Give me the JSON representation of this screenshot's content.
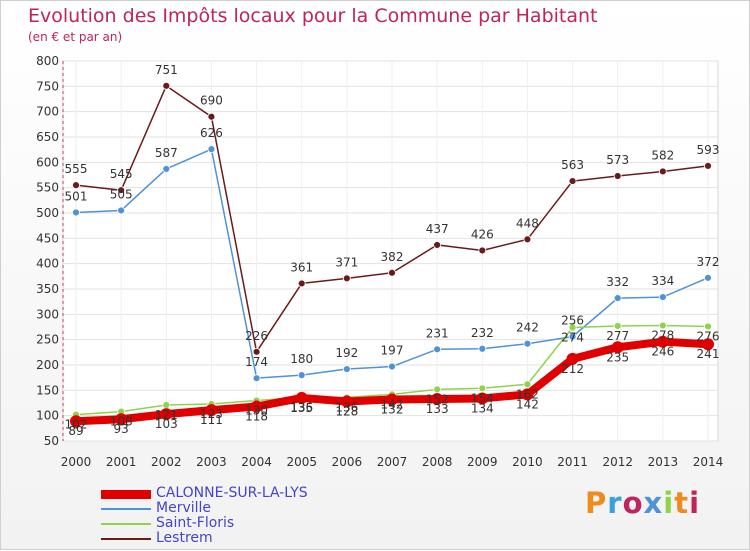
{
  "chart_data": {
    "type": "line",
    "title": "Evolution des Impôts locaux pour la Commune par Habitant",
    "subtitle": "(en € et par an)",
    "x": [
      "2000",
      "2001",
      "2002",
      "2003",
      "2004",
      "2005",
      "2006",
      "2007",
      "2008",
      "2009",
      "2010",
      "2011",
      "2012",
      "2013",
      "2014"
    ],
    "ylim": [
      50,
      800
    ],
    "yticks": [
      50,
      100,
      150,
      200,
      250,
      300,
      350,
      400,
      450,
      500,
      550,
      600,
      650,
      700,
      750,
      800
    ],
    "grid": true,
    "legend_position": "bottom-left",
    "series": [
      {
        "name": "CALONNE-SUR-LA-LYS",
        "color": "#e00000",
        "values": [
          89,
          93,
          103,
          111,
          118,
          135,
          128,
          132,
          133,
          134,
          142,
          212,
          235,
          246,
          241
        ],
        "labels": [
          "89",
          "93",
          "103",
          "111",
          "118",
          "135",
          "128",
          "132",
          "133",
          "134",
          "142",
          "212",
          "235",
          "246",
          "241"
        ]
      },
      {
        "name": "Merville",
        "color": "#4f92d6",
        "values": [
          501,
          505,
          587,
          626,
          174,
          180,
          192,
          197,
          231,
          232,
          242,
          256,
          332,
          334,
          372
        ],
        "labels": [
          "501",
          "505",
          "587",
          "626",
          "174",
          "180",
          "192",
          "197",
          "231",
          "232",
          "242",
          "256",
          "332",
          "334",
          "372"
        ]
      },
      {
        "name": "Saint-Floris",
        "color": "#8fd34a",
        "values": [
          102,
          108,
          121,
          123,
          130,
          136,
          136,
          142,
          152,
          154,
          162,
          274,
          277,
          278,
          276
        ],
        "labels": [
          "102",
          "108",
          "121",
          "123",
          "130",
          "136",
          "136",
          "142",
          "152",
          "154",
          "162",
          "274",
          "277",
          "278",
          "276"
        ]
      },
      {
        "name": "Lestrem",
        "color": "#6b1a1a",
        "values": [
          555,
          545,
          751,
          690,
          226,
          361,
          371,
          382,
          437,
          426,
          448,
          563,
          573,
          582,
          593
        ],
        "labels": [
          "555",
          "545",
          "751",
          "690",
          "226",
          "361",
          "371",
          "382",
          "437",
          "426",
          "448",
          "563",
          "573",
          "582",
          "593"
        ]
      }
    ]
  },
  "logo": {
    "text": "Proxiti",
    "colors": [
      "#f08a1c",
      "#3aa0e0",
      "#c0245b",
      "#4f92d6",
      "#8fd34a",
      "#f08a1c",
      "#c0245b"
    ]
  }
}
